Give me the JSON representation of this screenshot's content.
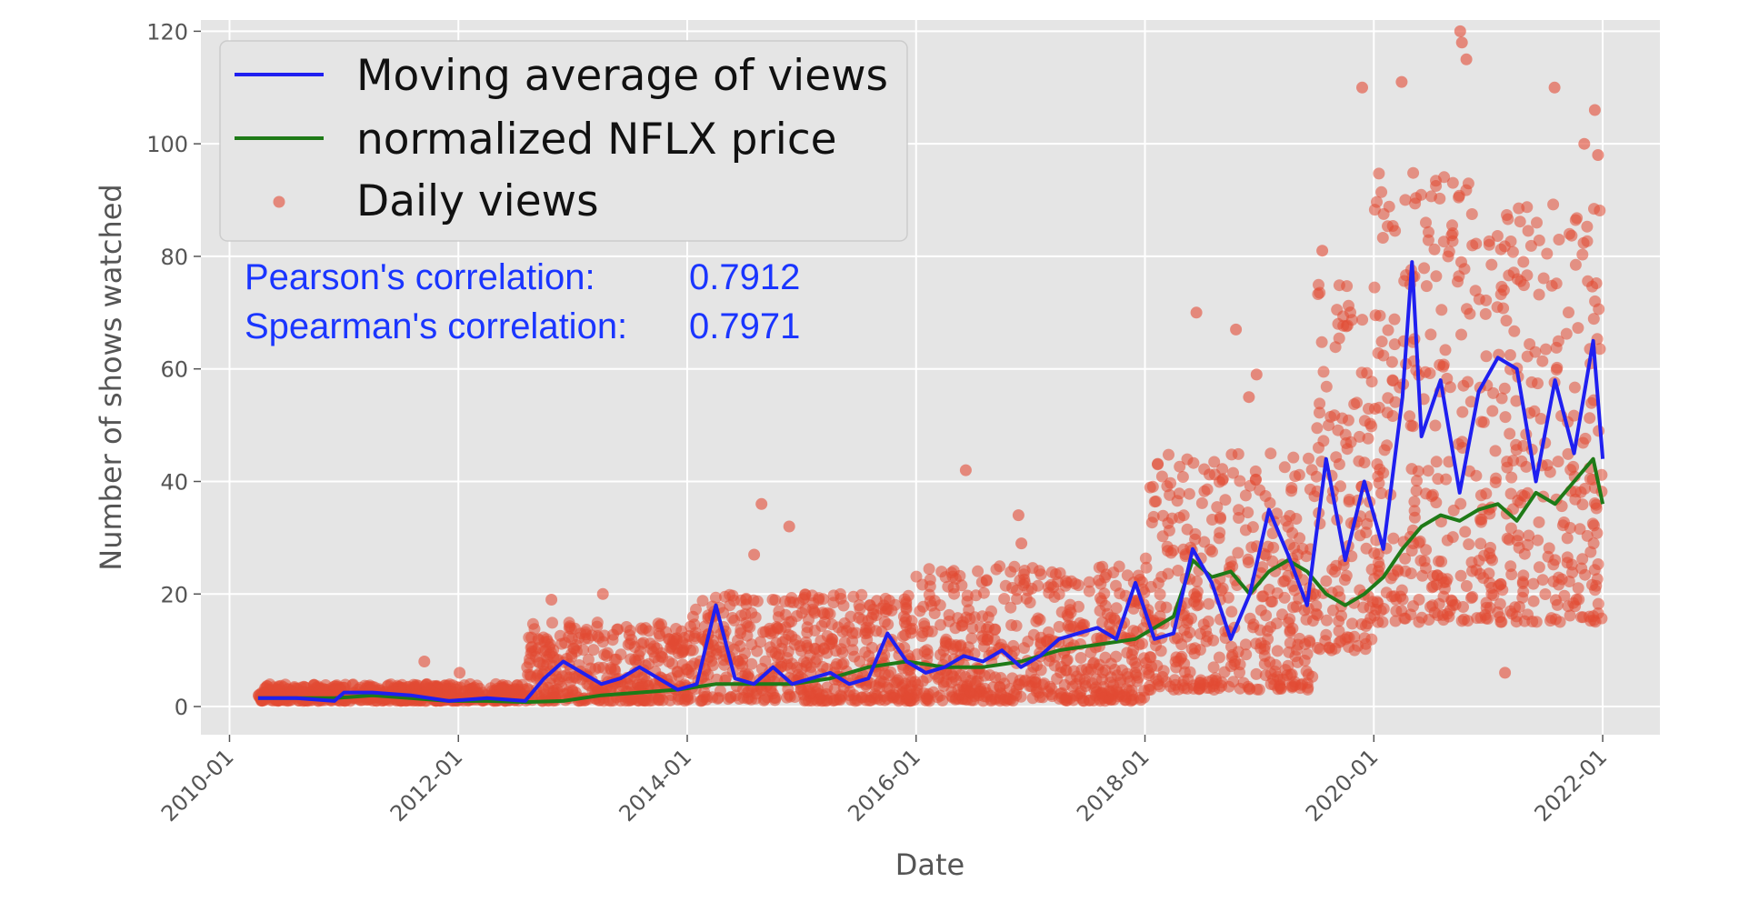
{
  "chart_data": {
    "type": "scatter",
    "xlabel": "Date",
    "ylabel": "Number of shows watched",
    "x_ticks": [
      "2010-01",
      "2012-01",
      "2014-01",
      "2016-01",
      "2018-01",
      "2020-01",
      "2022-01"
    ],
    "y_ticks": [
      0,
      20,
      40,
      60,
      80,
      100,
      120
    ],
    "xlim": [
      "2009-10",
      "2022-07"
    ],
    "ylim": [
      -5,
      122
    ],
    "grid": true,
    "legend_placement": "top-left",
    "annotations": [
      {
        "label": "Pearson's correlation:",
        "value": "0.7912",
        "color": "#1a35ff"
      },
      {
        "label": "Spearman's correlation:",
        "value": "0.7971",
        "color": "#1a35ff"
      }
    ],
    "series": [
      {
        "name": "Moving average of views",
        "kind": "line",
        "color": "#1f1ff0",
        "x": [
          "2010-04",
          "2010-08",
          "2010-12",
          "2011-01",
          "2011-04",
          "2011-08",
          "2011-12",
          "2012-04",
          "2012-08",
          "2012-10",
          "2012-12",
          "2013-02",
          "2013-04",
          "2013-06",
          "2013-08",
          "2013-10",
          "2013-12",
          "2014-02",
          "2014-04",
          "2014-06",
          "2014-08",
          "2014-10",
          "2014-12",
          "2015-02",
          "2015-04",
          "2015-06",
          "2015-08",
          "2015-10",
          "2015-12",
          "2016-02",
          "2016-04",
          "2016-06",
          "2016-08",
          "2016-10",
          "2016-12",
          "2017-02",
          "2017-04",
          "2017-06",
          "2017-08",
          "2017-10",
          "2017-12",
          "2018-02",
          "2018-04",
          "2018-06",
          "2018-08",
          "2018-10",
          "2018-12",
          "2019-02",
          "2019-04",
          "2019-06",
          "2019-08",
          "2019-10",
          "2019-12",
          "2020-02",
          "2020-04",
          "2020-05",
          "2020-06",
          "2020-08",
          "2020-10",
          "2020-12",
          "2021-02",
          "2021-04",
          "2021-06",
          "2021-08",
          "2021-10",
          "2021-12",
          "2022-01"
        ],
        "y": [
          1.5,
          1.5,
          1,
          2.5,
          2.5,
          2,
          1,
          1.5,
          1,
          5,
          8,
          6,
          4,
          5,
          7,
          5,
          3,
          4,
          18,
          5,
          4,
          7,
          4,
          5,
          6,
          4,
          5,
          13,
          8,
          6,
          7,
          9,
          8,
          10,
          7,
          9,
          12,
          13,
          14,
          12,
          22,
          12,
          13,
          28,
          22,
          12,
          20,
          35,
          27,
          18,
          44,
          26,
          40,
          28,
          55,
          79,
          48,
          58,
          38,
          56,
          62,
          60,
          40,
          58,
          45,
          65,
          44
        ],
        "_note": "values approximate read from chart"
      },
      {
        "name": "normalized NFLX price",
        "kind": "line",
        "color": "#1e7a17",
        "x": [
          "2010-04",
          "2010-08",
          "2010-12",
          "2011-04",
          "2011-08",
          "2011-12",
          "2012-04",
          "2012-08",
          "2012-12",
          "2013-04",
          "2013-08",
          "2013-12",
          "2014-04",
          "2014-08",
          "2014-12",
          "2015-04",
          "2015-08",
          "2015-12",
          "2016-04",
          "2016-08",
          "2016-12",
          "2017-04",
          "2017-08",
          "2017-12",
          "2018-04",
          "2018-06",
          "2018-08",
          "2018-10",
          "2018-12",
          "2019-02",
          "2019-04",
          "2019-06",
          "2019-08",
          "2019-10",
          "2019-12",
          "2020-02",
          "2020-04",
          "2020-06",
          "2020-08",
          "2020-10",
          "2020-12",
          "2021-02",
          "2021-04",
          "2021-06",
          "2021-08",
          "2021-10",
          "2021-12",
          "2022-01"
        ],
        "y": [
          1.5,
          1.5,
          1.5,
          2,
          1.5,
          1,
          1,
          0.8,
          1,
          2,
          2.5,
          3,
          4,
          4,
          4,
          5,
          7,
          8,
          7,
          7,
          8,
          10,
          11,
          12,
          16,
          26,
          23,
          24,
          20,
          24,
          26,
          24,
          20,
          18,
          20,
          23,
          28,
          32,
          34,
          33,
          35,
          36,
          33,
          38,
          36,
          40,
          44,
          36
        ]
      },
      {
        "name": "Daily views",
        "kind": "scatter",
        "color": "#e24a33",
        "note": "dense daily scatter; representative band per period (low, high, notable outliers)",
        "bands": [
          {
            "from": "2010-04",
            "to": "2012-08",
            "low": 1,
            "high": 4,
            "outliers": [
              8,
              6
            ]
          },
          {
            "from": "2012-08",
            "to": "2014-01",
            "low": 1,
            "high": 15,
            "outliers": [
              19,
              20
            ]
          },
          {
            "from": "2014-01",
            "to": "2016-01",
            "low": 1,
            "high": 20,
            "outliers": [
              32,
              36,
              27
            ]
          },
          {
            "from": "2016-01",
            "to": "2018-01",
            "low": 1,
            "high": 25,
            "outliers": [
              42,
              34,
              29
            ]
          },
          {
            "from": "2018-01",
            "to": "2019-07",
            "low": 3,
            "high": 45,
            "outliers": [
              67,
              59,
              70,
              55
            ]
          },
          {
            "from": "2019-07",
            "to": "2020-01",
            "low": 10,
            "high": 75,
            "outliers": [
              110,
              81
            ]
          },
          {
            "from": "2020-01",
            "to": "2021-01",
            "low": 15,
            "high": 95,
            "outliers": [
              120,
              118,
              115,
              111
            ]
          },
          {
            "from": "2021-01",
            "to": "2022-01",
            "low": 15,
            "high": 90,
            "outliers": [
              110,
              106,
              100,
              98,
              6
            ]
          }
        ]
      }
    ]
  }
}
